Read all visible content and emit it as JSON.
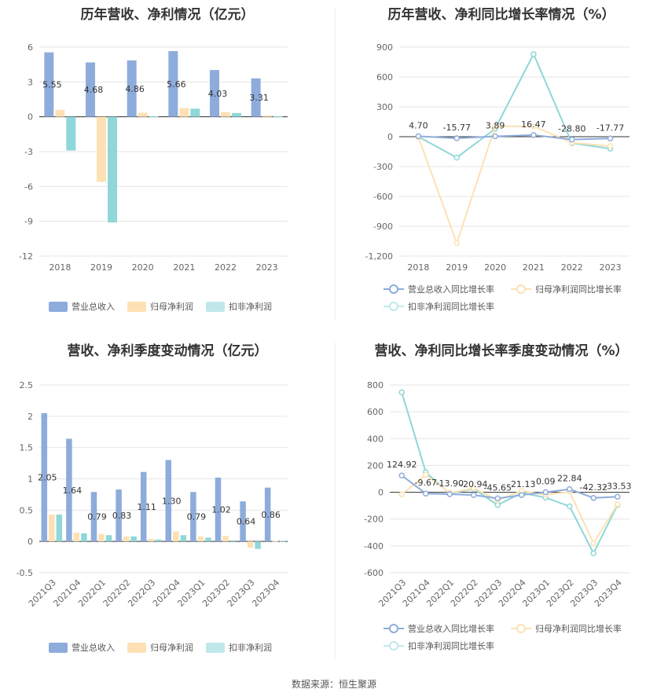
{
  "colors": {
    "revenue": "#8eacdb",
    "net_profit": "#fde1b4",
    "deducted_profit": "#8fd7d8",
    "revenue_light": "#c5d5ee",
    "grid": "#e6e6e6",
    "axis": "#333333"
  },
  "source": "数据来源：恒生聚源",
  "chart_data": [
    {
      "id": "annual_values",
      "type": "bar",
      "title": "历年营收、净利情况（亿元）",
      "categories": [
        "2018",
        "2019",
        "2020",
        "2021",
        "2022",
        "2023"
      ],
      "series": [
        {
          "name": "营业总收入",
          "values": [
            5.55,
            4.68,
            4.86,
            5.66,
            4.03,
            3.31
          ],
          "labels": [
            "5.55",
            "4.68",
            "4.86",
            "5.66",
            "4.03",
            "3.31"
          ]
        },
        {
          "name": "归母净利润",
          "values": [
            0.6,
            -5.6,
            0.35,
            0.75,
            0.4,
            0.1
          ]
        },
        {
          "name": "扣非净利润",
          "values": [
            -2.9,
            -9.1,
            0.05,
            0.7,
            0.33,
            0.05
          ]
        }
      ],
      "yticks": [
        6,
        3,
        0,
        -3,
        -6,
        -9,
        -12
      ],
      "ylim": [
        -12,
        6
      ]
    },
    {
      "id": "annual_growth",
      "type": "line",
      "title": "历年营收、净利同比增长率情况（%）",
      "categories": [
        "2018",
        "2019",
        "2020",
        "2021",
        "2022",
        "2023"
      ],
      "series": [
        {
          "name": "营业总收入同比增长率",
          "values": [
            4.7,
            -15.77,
            3.89,
            16.47,
            -28.8,
            -17.77
          ],
          "labels": [
            "4.70",
            "-15.77",
            "3.89",
            "16.47",
            "-28.80",
            "-17.77"
          ]
        },
        {
          "name": "归母净利润同比增长率",
          "values": [
            -5,
            -1070,
            105,
            105,
            -60,
            -95
          ]
        },
        {
          "name": "扣非净利润同比增长率",
          "values": [
            0,
            -210,
            80,
            830,
            -65,
            -120
          ]
        }
      ],
      "yticks": [
        "900",
        "600",
        "300",
        "0",
        "-300",
        "-600",
        "-900",
        "-1,200"
      ],
      "ylim": [
        -1200,
        900
      ]
    },
    {
      "id": "quarterly_values",
      "type": "bar",
      "title": "营收、净利季度变动情况（亿元）",
      "categories": [
        "2021Q3",
        "2021Q4",
        "2022Q1",
        "2022Q2",
        "2022Q3",
        "2022Q4",
        "2023Q1",
        "2023Q2",
        "2023Q3",
        "2023Q4"
      ],
      "series": [
        {
          "name": "营业总收入",
          "values": [
            2.05,
            1.64,
            0.79,
            0.83,
            1.11,
            1.3,
            0.79,
            1.02,
            0.64,
            0.86
          ],
          "labels": [
            "2.05",
            "1.64",
            "0.79",
            "0.83",
            "1.11",
            "1.30",
            "0.79",
            "1.02",
            "0.64",
            "0.86"
          ]
        },
        {
          "name": "归母净利润",
          "values": [
            0.43,
            0.14,
            0.12,
            0.08,
            0.04,
            0.16,
            0.08,
            0.09,
            -0.1,
            0.01
          ]
        },
        {
          "name": "扣非净利润",
          "values": [
            0.43,
            0.13,
            0.1,
            0.08,
            0.03,
            0.1,
            0.06,
            0.0,
            -0.12,
            0.01
          ]
        }
      ],
      "yticks": [
        "2.5",
        "2",
        "1.5",
        "1",
        "0.5",
        "0",
        "-0.5"
      ],
      "ylim": [
        -0.5,
        2.5
      ]
    },
    {
      "id": "quarterly_growth",
      "type": "line",
      "title": "营收、净利同比增长率季度变动情况（%）",
      "categories": [
        "2021Q3",
        "2021Q4",
        "2022Q1",
        "2022Q2",
        "2022Q3",
        "2022Q4",
        "2023Q1",
        "2023Q2",
        "2023Q3",
        "2023Q4"
      ],
      "series": [
        {
          "name": "营业总收入同比增长率",
          "values": [
            124.92,
            -9.67,
            -13.9,
            -20.94,
            -45.65,
            -21.13,
            0.09,
            22.84,
            -42.32,
            -33.53
          ],
          "labels": [
            "124.92",
            "-9.67",
            "-13.90",
            "-20.94",
            "-45.65",
            "-21.13",
            "0.09",
            "22.84",
            "-42.32",
            "-33.53"
          ]
        },
        {
          "name": "归母净利润同比增长率",
          "values": [
            -15,
            130,
            -5,
            30,
            -60,
            10,
            -20,
            5,
            -380,
            -90
          ]
        },
        {
          "name": "扣非净利润同比增长率",
          "values": [
            745,
            150,
            -10,
            25,
            -95,
            -5,
            -40,
            -105,
            -455,
            -95
          ]
        }
      ],
      "yticks": [
        "800",
        "600",
        "400",
        "200",
        "0",
        "-200",
        "-400",
        "-600"
      ],
      "ylim": [
        -600,
        800
      ]
    }
  ]
}
